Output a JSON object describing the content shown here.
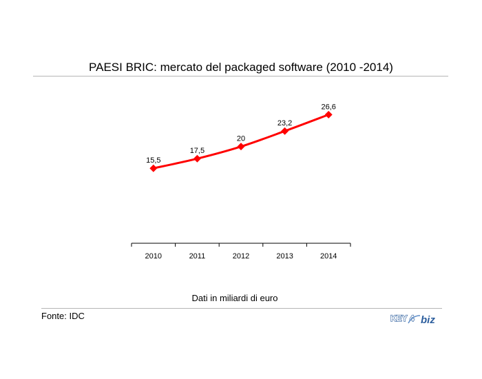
{
  "title": "PAESI BRIC: mercato del packaged software (2010 -2014)",
  "unit_note": "Dati in miliardi di euro",
  "source": "Fonte: IDC",
  "logo": {
    "text_key": "KEY",
    "text_4": "4",
    "text_biz": "biz",
    "color": "#2e5f9e"
  },
  "colors": {
    "line": "#ff0000",
    "marker": "#ff0000",
    "axis": "#000000",
    "rule": "#b5b5b5"
  },
  "chart_data": {
    "type": "line",
    "title": "PAESI BRIC: mercato del packaged software (2010 -2014)",
    "xlabel": "",
    "ylabel": "",
    "categories": [
      "2010",
      "2011",
      "2012",
      "2013",
      "2014"
    ],
    "values": [
      15.5,
      17.5,
      20,
      23.2,
      26.6
    ],
    "value_labels": [
      "15,5",
      "17,5",
      "20",
      "23,2",
      "26,6"
    ],
    "ylim": [
      0,
      30.5
    ],
    "grid": false,
    "legend": "none",
    "marker": "diamond",
    "smooth": true
  }
}
